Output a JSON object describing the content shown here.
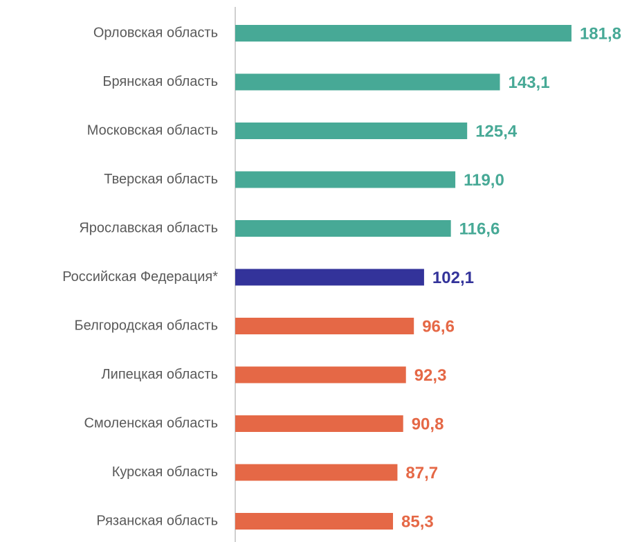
{
  "chart_data": {
    "type": "barh",
    "categories": [
      "Орловская область",
      "Брянская область",
      "Московская область",
      "Тверская область",
      "Ярославская область",
      "Российская Федерация*",
      "Белгородская область",
      "Липецкая область",
      "Смоленская область",
      "Курская область",
      "Рязанская область"
    ],
    "values": [
      181.8,
      143.1,
      125.4,
      119.0,
      116.6,
      102.1,
      96.6,
      92.3,
      90.8,
      87.7,
      85.3
    ],
    "value_labels": [
      "181,8",
      "143,1",
      "125,4",
      "119,0",
      "116,6",
      "102,1",
      "96,6",
      "92,3",
      "90,8",
      "87,7",
      "85,3"
    ],
    "colors": [
      "#47a996",
      "#47a996",
      "#47a996",
      "#47a996",
      "#47a996",
      "#33339a",
      "#e56846",
      "#e56846",
      "#e56846",
      "#e56846",
      "#e56846"
    ],
    "xlim": [
      0,
      200
    ]
  }
}
